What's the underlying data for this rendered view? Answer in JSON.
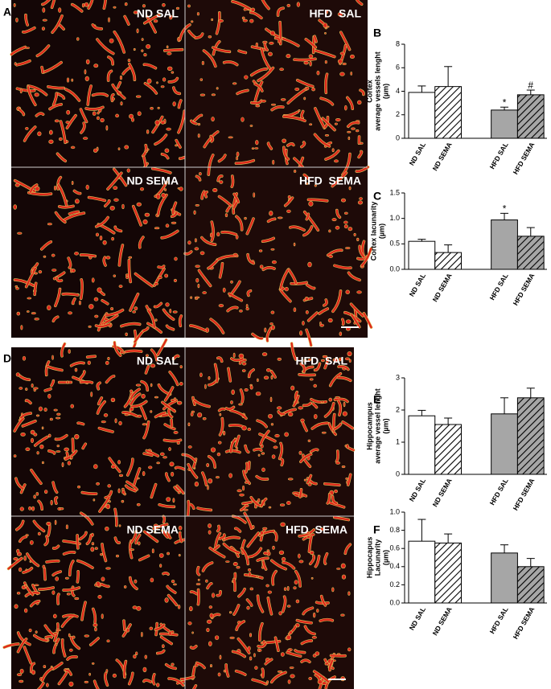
{
  "figure": {
    "panel_letters": [
      "A",
      "B",
      "C",
      "D",
      "E",
      "F"
    ],
    "image_labels": [
      "ND SAL",
      "HFD  SAL",
      "ND SEMA",
      "HFD  SEMA",
      "ND SAL",
      "HFD  SAL",
      "ND SEMA",
      "HFD  SEMA"
    ]
  },
  "chart_data": [
    {
      "type": "bar",
      "ylabel": [
        "Cortex",
        "average vessels lenght",
        "(µm)"
      ],
      "categories": [
        "ND SAL",
        "ND SEMA",
        "HFD SAL",
        "HFD SEMA"
      ],
      "values": [
        3.9,
        4.4,
        2.4,
        3.7
      ],
      "errors": [
        0.55,
        1.7,
        0.25,
        0.4
      ],
      "colors": [
        "#ffffff",
        "#ffffff",
        "#a6a6a6",
        "#a6a6a6"
      ],
      "hatched": [
        false,
        true,
        false,
        true
      ],
      "annotations": [
        null,
        null,
        "*",
        "#"
      ],
      "ylim": [
        0,
        8
      ],
      "yticks": [
        0,
        2,
        4,
        6,
        8
      ]
    },
    {
      "type": "bar",
      "ylabel": [
        "Cortex lacunarity",
        "(µm)"
      ],
      "categories": [
        "ND SAL",
        "ND SEMA",
        "HFD SAL",
        "HFD SEMA"
      ],
      "values": [
        0.55,
        0.33,
        0.97,
        0.65
      ],
      "errors": [
        0.04,
        0.15,
        0.13,
        0.17
      ],
      "colors": [
        "#ffffff",
        "#ffffff",
        "#a6a6a6",
        "#a6a6a6"
      ],
      "hatched": [
        false,
        true,
        false,
        true
      ],
      "annotations": [
        null,
        null,
        "*",
        null
      ],
      "ylim": [
        0,
        1.5
      ],
      "yticks": [
        {
          "value": 0,
          "label": "0.0"
        },
        {
          "value": 0.5,
          "label": "0.5"
        },
        {
          "value": 1,
          "label": "1.0"
        },
        {
          "value": 1.5,
          "label": "1.5"
        }
      ]
    },
    {
      "type": "bar",
      "ylabel": [
        "Hippocampus",
        "average vessel lenght",
        "(µm)"
      ],
      "categories": [
        "ND SAL",
        "ND SEMA",
        "HFD SAL",
        "HFD SEMA"
      ],
      "values": [
        1.82,
        1.55,
        1.88,
        2.38
      ],
      "errors": [
        0.17,
        0.2,
        0.5,
        0.3
      ],
      "colors": [
        "#ffffff",
        "#ffffff",
        "#a6a6a6",
        "#a6a6a6"
      ],
      "hatched": [
        false,
        true,
        false,
        true
      ],
      "annotations": [
        null,
        null,
        null,
        null
      ],
      "ylim": [
        0,
        3
      ],
      "yticks": [
        0,
        1,
        2,
        3
      ]
    },
    {
      "type": "bar",
      "ylabel": [
        "Hippocapus",
        "Lacunarity",
        "(µm)"
      ],
      "categories": [
        "ND SAL",
        "ND SEMA",
        "HFD SAL",
        "HFD SEMA"
      ],
      "values": [
        0.68,
        0.66,
        0.55,
        0.4
      ],
      "errors": [
        0.24,
        0.1,
        0.09,
        0.09
      ],
      "colors": [
        "#ffffff",
        "#ffffff",
        "#a6a6a6",
        "#a6a6a6"
      ],
      "hatched": [
        false,
        true,
        false,
        true
      ],
      "annotations": [
        null,
        null,
        null,
        null
      ],
      "ylim": [
        0,
        1.0
      ],
      "yticks": [
        {
          "value": 0,
          "label": "0.0"
        },
        {
          "value": 0.2,
          "label": "0.2"
        },
        {
          "value": 0.4,
          "label": "0.4"
        },
        {
          "value": 0.6,
          "label": "0.6"
        },
        {
          "value": 0.8,
          "label": "0.8"
        },
        {
          "value": 1.0,
          "label": "1.0"
        }
      ]
    }
  ]
}
